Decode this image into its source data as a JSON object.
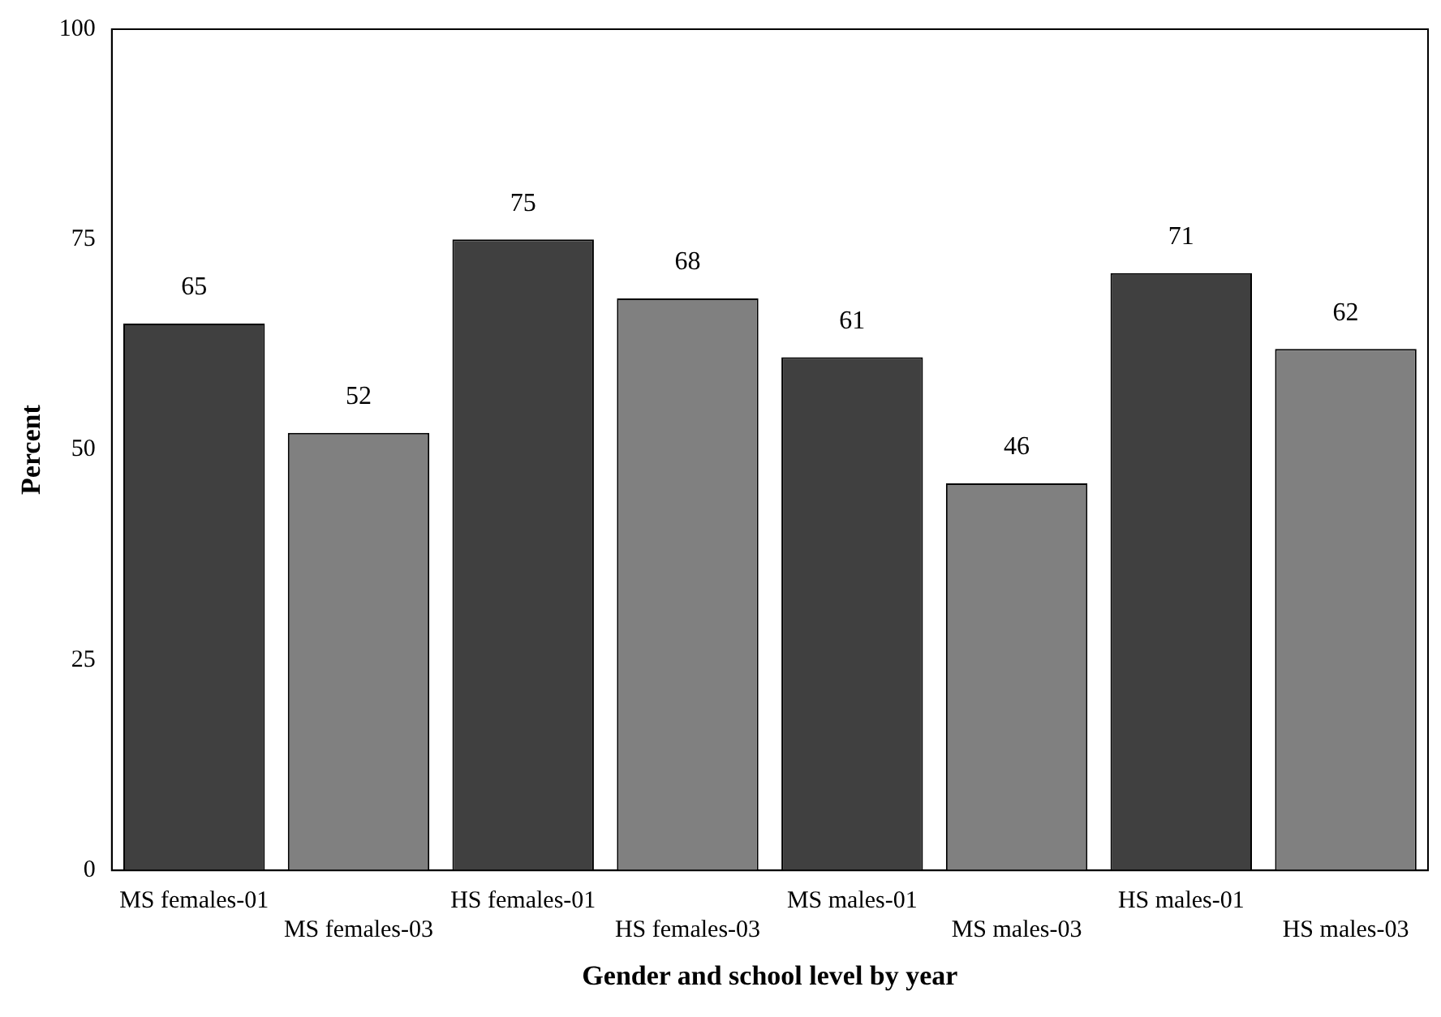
{
  "chart_data": {
    "type": "bar",
    "xlabel": "Gender and school level by year",
    "ylabel": "Percent",
    "categories": [
      "MS females-01",
      "MS females-03",
      "HS females-01",
      "HS females-03",
      "MS males-01",
      "MS males-03",
      "HS males-01",
      "HS males-03"
    ],
    "values": [
      65,
      52,
      75,
      68,
      61,
      46,
      71,
      62
    ],
    "colors": [
      "#404040",
      "#808080",
      "#404040",
      "#808080",
      "#404040",
      "#808080",
      "#404040",
      "#808080"
    ],
    "ylim": [
      0,
      100
    ],
    "yticks": [
      0,
      25,
      50,
      75,
      100
    ],
    "grid": false,
    "legend": false,
    "data_labels": true
  }
}
